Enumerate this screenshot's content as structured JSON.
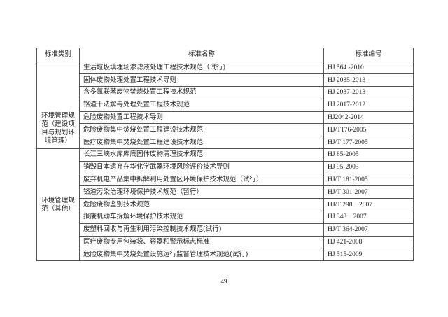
{
  "headers": [
    "标准类别",
    "标准名称",
    "标准编号"
  ],
  "groups": [
    {
      "category": "环境管理规范（建设项目与规划环境管理）",
      "rows": [
        {
          "name": "生活垃圾填埋场渗滤液处理工程技术规范（试行)",
          "code": "HJ 564 -2010"
        },
        {
          "name": "固体废物处理处置工程技术导则",
          "code": "HJ 2035-2013"
        },
        {
          "name": "含多氯联苯废物焚烧处置工程技术规范",
          "code": "HJ 2037-2013"
        },
        {
          "name": "铬渣干法解毒处理处置工程技术规范",
          "code": "HJ 2017-2012"
        },
        {
          "name": "危险废物处置工程技术导则",
          "code": "HJ2042-2014"
        },
        {
          "name": "危险废物集中焚烧处置工程建设技术规范",
          "code": "HJ/T176-2005"
        },
        {
          "name": "医疗废物集中焚烧处置工程建设技术规范",
          "code": "HJ/T 177-2005"
        }
      ]
    },
    {
      "category": "环境管理规范（其他）",
      "rows": [
        {
          "name": "长江三峡水库库底固体废物清理技术规范",
          "code": "HJ 85-2005"
        },
        {
          "name": "销毁日本遗弃在华化学武器环境风险评价技术导则",
          "code": "HJ 95-2003"
        },
        {
          "name": "废弃机电产品集中拆解利用处置区环境保护技术规范（试行）",
          "code": "HJ/T 181-2005"
        },
        {
          "name": "铬渣污染治理环境保护技术规范（暂行）",
          "code": "HJ/T 301-2007"
        },
        {
          "name": "危险废物鉴别技术规范",
          "code": "HJ/T 298－2007"
        },
        {
          "name": "报废机动车拆解环境保护技术规范",
          "code": "HJ 348－2007"
        },
        {
          "name": "废塑料回收与再生利用污染控制技术规范(试行)",
          "code": "HJ/T 364-2007"
        },
        {
          "name": "医疗废物专用包装袋、容器和警示标志标准",
          "code": "HJ 421-2008"
        },
        {
          "name": "危险废物集中焚烧处置设施运行监督管理技术规范(试行)",
          "code": "HJ 515-2009"
        }
      ]
    }
  ],
  "page_number": "49"
}
